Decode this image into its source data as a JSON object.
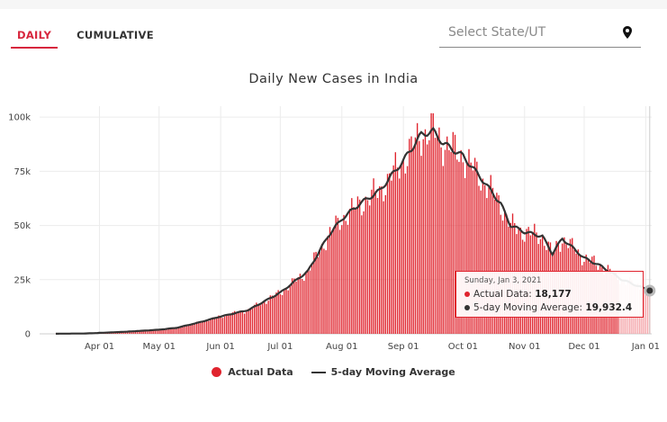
{
  "tabs": {
    "daily": "DAILY",
    "cumulative": "CUMULATIVE"
  },
  "state_select": {
    "placeholder": "Select State/UT",
    "icon": "map-pin-icon"
  },
  "colors": {
    "actual": "#e0242e",
    "average": "#333333",
    "accent": "#d7263d"
  },
  "chart_data": {
    "type": "bar",
    "title": "Daily New Cases in India",
    "ylim": [
      0,
      105000
    ],
    "y_ticks": [
      0,
      25000,
      50000,
      75000,
      100000
    ],
    "y_tick_labels": [
      "0",
      "25k",
      "50k",
      "75k",
      "100k"
    ],
    "x_range": [
      "2020-03-10",
      "2021-01-04"
    ],
    "x_tick_labels": [
      "Apr 01",
      "May 01",
      "Jun 01",
      "Jul 01",
      "Aug 01",
      "Sep 01",
      "Oct 01",
      "Nov 01",
      "Dec 01",
      "Jan 01"
    ],
    "grid": true,
    "legend_position": "bottom",
    "approx_5day_average_anchors": [
      [
        "2020-03-10",
        50
      ],
      [
        "2020-03-25",
        150
      ],
      [
        "2020-04-15",
        1000
      ],
      [
        "2020-05-01",
        1900
      ],
      [
        "2020-05-10",
        2800
      ],
      [
        "2020-05-20",
        5000
      ],
      [
        "2020-06-01",
        8000
      ],
      [
        "2020-06-15",
        11000
      ],
      [
        "2020-07-01",
        19000
      ],
      [
        "2020-07-15",
        29000
      ],
      [
        "2020-07-25",
        45000
      ],
      [
        "2020-08-01",
        53000
      ],
      [
        "2020-08-10",
        60000
      ],
      [
        "2020-08-20",
        66000
      ],
      [
        "2020-09-01",
        80000
      ],
      [
        "2020-09-10",
        92000
      ],
      [
        "2020-09-16",
        93500
      ],
      [
        "2020-09-21",
        88000
      ],
      [
        "2020-10-01",
        82000
      ],
      [
        "2020-10-10",
        72000
      ],
      [
        "2020-10-20",
        60000
      ],
      [
        "2020-10-25",
        50000
      ],
      [
        "2020-11-01",
        47000
      ],
      [
        "2020-11-10",
        45000
      ],
      [
        "2020-11-15",
        37000
      ],
      [
        "2020-11-20",
        44000
      ],
      [
        "2020-12-01",
        35000
      ],
      [
        "2020-12-10",
        31000
      ],
      [
        "2020-12-20",
        25000
      ],
      [
        "2021-01-03",
        19932
      ]
    ],
    "tooltip": {
      "date": "Sunday, Jan 3, 2021",
      "actual_label": "Actual Data:",
      "actual_value": "18,177",
      "average_label": "5-day Moving Average:",
      "average_value": "19,932.4"
    },
    "series": [
      {
        "name": "Actual Data",
        "type": "bar"
      },
      {
        "name": "5-day Moving Average",
        "type": "line"
      }
    ]
  }
}
